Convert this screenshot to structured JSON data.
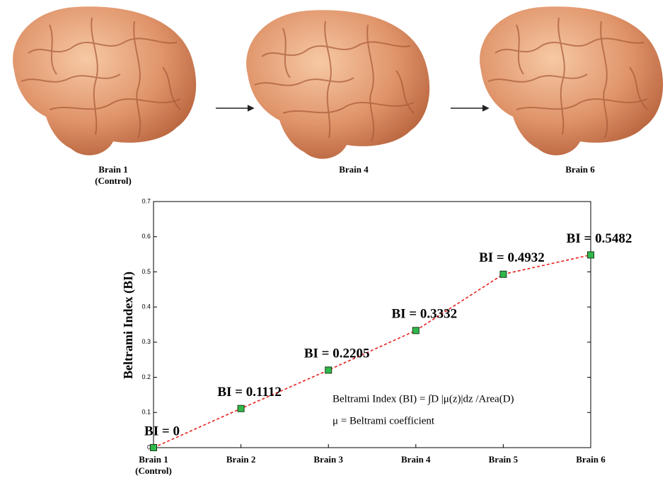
{
  "images": [
    {
      "label": "Brain 1 (Control)"
    },
    {
      "label": "Brain 4"
    },
    {
      "label": "Brain 6"
    }
  ],
  "chart_data": {
    "type": "line",
    "ylabel": "Beltrami Index (BI)",
    "categories": [
      "Brain 1 (Control)",
      "Brain 2",
      "Brain 3",
      "Brain 4",
      "Brain 5",
      "Brain 6"
    ],
    "values": [
      0,
      0.1112,
      0.2205,
      0.3332,
      0.4932,
      0.5482
    ],
    "value_labels": [
      "BI = 0",
      "BI = 0.1112",
      "BI = 0.2205",
      "BI = 0.3332",
      "BI = 0.4932",
      "BI = 0.5482"
    ],
    "color": "#e8201c",
    "marker_color": "#2fb84a",
    "ylim": [
      0,
      0.7
    ],
    "yticks": [
      0,
      0.1,
      0.2,
      0.3,
      0.4,
      0.5,
      0.6,
      0.7
    ],
    "annotations": [
      "Beltrami Index (BI) = ∫D |μ(z)|dz /Area(D)",
      "μ = Beltrami coefficient"
    ]
  }
}
